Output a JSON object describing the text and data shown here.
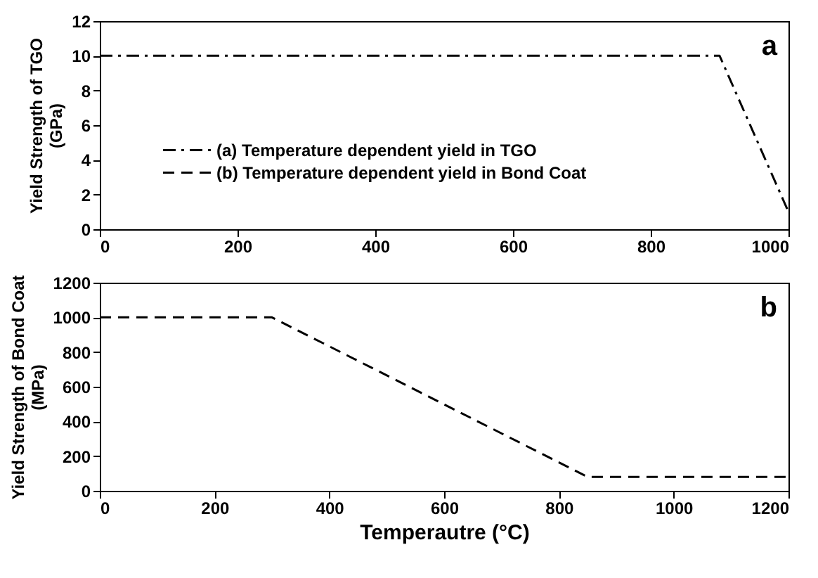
{
  "chart_data": [
    {
      "type": "line",
      "ylabel": "Yield Strength of TGO\n(GPa)",
      "x": [
        0,
        900,
        1000
      ],
      "xlim": [
        0,
        1000
      ],
      "xticks": [
        0,
        200,
        400,
        600,
        800,
        1000
      ],
      "ylim": [
        0,
        12
      ],
      "yticks": [
        0,
        2,
        4,
        6,
        8,
        10,
        12
      ],
      "legend": "left",
      "annotations": [
        "a"
      ],
      "series": [
        {
          "name": "(a) Temperature dependent yield in TGO",
          "color": "#000000",
          "line_style": "dashdot",
          "values": [
            10,
            10,
            1
          ]
        }
      ]
    },
    {
      "type": "line",
      "xlabel": "Temperautre (°C)",
      "ylabel": "Yield Strength of Bond Coat\n(MPa)",
      "x": [
        0,
        300,
        850,
        1200
      ],
      "xlim": [
        0,
        1200
      ],
      "xticks": [
        0,
        200,
        400,
        600,
        800,
        1000,
        1200
      ],
      "ylim": [
        0,
        1200
      ],
      "yticks": [
        0,
        200,
        400,
        600,
        800,
        1000,
        1200
      ],
      "annotations": [
        "b"
      ],
      "series": [
        {
          "name": "(b) Temperature dependent yield in Bond Coat",
          "color": "#000000",
          "line_style": "dashed",
          "values": [
            1000,
            1000,
            80,
            80
          ]
        }
      ]
    }
  ]
}
